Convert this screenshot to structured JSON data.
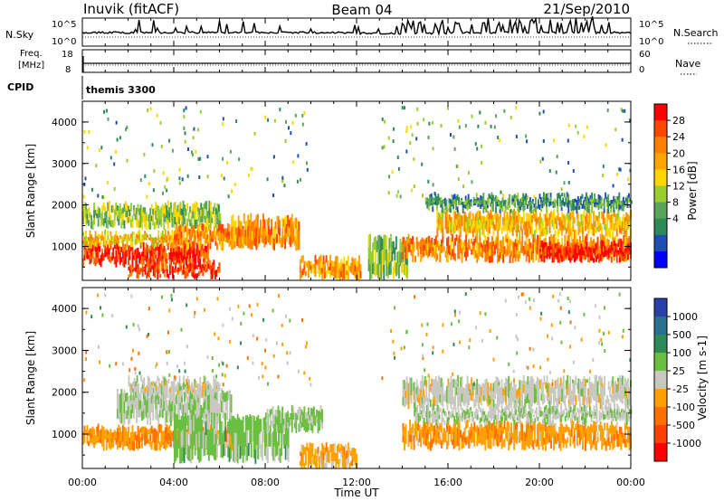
{
  "header": {
    "station": "Inuvik (fitACF)",
    "beam": "Beam 04",
    "date": "21/Sep/2010"
  },
  "noise_panel": {
    "left_label": "N.Sky",
    "right_label": "N.Search",
    "top_tick": "10^5",
    "bottom_tick": "10^0"
  },
  "freq_panel": {
    "left_label_line1": "Freq.",
    "left_label_line2": "[MHz]",
    "right_label": "Nave",
    "left_ticks": [
      "18",
      "8"
    ],
    "right_ticks": [
      "60",
      "0"
    ]
  },
  "cpid_panel": {
    "label": "CPID",
    "value": "themis 3300"
  },
  "chart_data": [
    {
      "type": "heatmap",
      "title": "Power",
      "ylabel": "Slant Range [km]",
      "ylim": [
        180,
        4500
      ],
      "yticks": [
        "4000",
        "3000",
        "2000",
        "1000"
      ],
      "colorbar_label": "Power [dB]",
      "colorbar_ticks": [
        "28",
        "24",
        "20",
        "16",
        "12",
        "8",
        "4"
      ],
      "colorscale": [
        "#0000ff",
        "#1f4fb4",
        "#2e8b57",
        "#5aa55a",
        "#9acd32",
        "#ffd700",
        "#ffa500",
        "#ff7f00",
        "#ff4500",
        "#ff0000"
      ],
      "value_range": [
        0,
        30
      ],
      "bands": [
        {
          "t0": 0.0,
          "t1": 5.5,
          "r0": 600,
          "r1": 1050,
          "v": 27
        },
        {
          "t0": 0.0,
          "t1": 4.5,
          "r0": 1050,
          "r1": 1300,
          "v": 18
        },
        {
          "t0": 0.0,
          "t1": 6.0,
          "r0": 1500,
          "r1": 2000,
          "v": 13
        },
        {
          "t0": 2.0,
          "t1": 6.0,
          "r0": 300,
          "r1": 600,
          "v": 26
        },
        {
          "t0": 4.0,
          "t1": 7.0,
          "r0": 1000,
          "r1": 1450,
          "v": 22
        },
        {
          "t0": 6.5,
          "t1": 9.5,
          "r0": 1000,
          "r1": 1700,
          "v": 21
        },
        {
          "t0": 9.5,
          "t1": 12.2,
          "r0": 250,
          "r1": 700,
          "v": 20
        },
        {
          "t0": 12.5,
          "t1": 14.2,
          "r0": 300,
          "r1": 1200,
          "v": 12
        },
        {
          "t0": 14.0,
          "t1": 24.0,
          "r0": 700,
          "r1": 1200,
          "v": 22
        },
        {
          "t0": 15.5,
          "t1": 24.0,
          "r0": 1300,
          "r1": 1800,
          "v": 19
        },
        {
          "t0": 15.0,
          "t1": 24.0,
          "r0": 1900,
          "r1": 2200,
          "v": 9
        },
        {
          "t0": 20.0,
          "t1": 24.0,
          "r0": 700,
          "r1": 1050,
          "v": 28
        }
      ]
    },
    {
      "type": "heatmap",
      "title": "Velocity",
      "ylabel": "Slant Range [km]",
      "ylim": [
        180,
        4500
      ],
      "yticks": [
        "4000",
        "3000",
        "2000",
        "1000"
      ],
      "colorbar_label": "Velocity [m s-1]",
      "colorbar_ticks": [
        "1000",
        "500",
        "100",
        "25",
        "-25",
        "-100",
        "-500",
        "-1000"
      ],
      "colorscale": [
        "#2a3fa8",
        "#2b6f8f",
        "#2e8b57",
        "#6abf40",
        "#c8c8c0",
        "#ffa000",
        "#ff7000",
        "#ff4000",
        "#ff0000"
      ],
      "value_range": [
        -1000,
        1000
      ],
      "bands": [
        {
          "t0": 0.0,
          "t1": 7.0,
          "r0": 700,
          "r1": 1150,
          "v": -300
        },
        {
          "t0": 1.5,
          "t1": 6.5,
          "r0": 1300,
          "r1": 2000,
          "v": 80
        },
        {
          "t0": 4.0,
          "t1": 9.0,
          "r0": 400,
          "r1": 1400,
          "v": 200
        },
        {
          "t0": 2.0,
          "t1": 6.0,
          "r0": 1900,
          "r1": 2300,
          "v": 0
        },
        {
          "t0": 8.0,
          "t1": 10.5,
          "r0": 1100,
          "r1": 1600,
          "v": 150
        },
        {
          "t0": 9.5,
          "t1": 12.0,
          "r0": 200,
          "r1": 700,
          "v": -200
        },
        {
          "t0": 14.0,
          "t1": 24.0,
          "r0": 700,
          "r1": 1250,
          "v": -250
        },
        {
          "t0": 14.0,
          "t1": 24.0,
          "r0": 1700,
          "r1": 2300,
          "v": 0
        },
        {
          "t0": 14.5,
          "t1": 24.0,
          "r0": 1300,
          "r1": 1650,
          "v": 60
        }
      ]
    }
  ],
  "time_axis": {
    "xlabel": "Time UT",
    "ticks": [
      "00:00",
      "04:00",
      "08:00",
      "12:00",
      "16:00",
      "20:00",
      "00:00"
    ],
    "range": [
      0,
      24
    ]
  }
}
